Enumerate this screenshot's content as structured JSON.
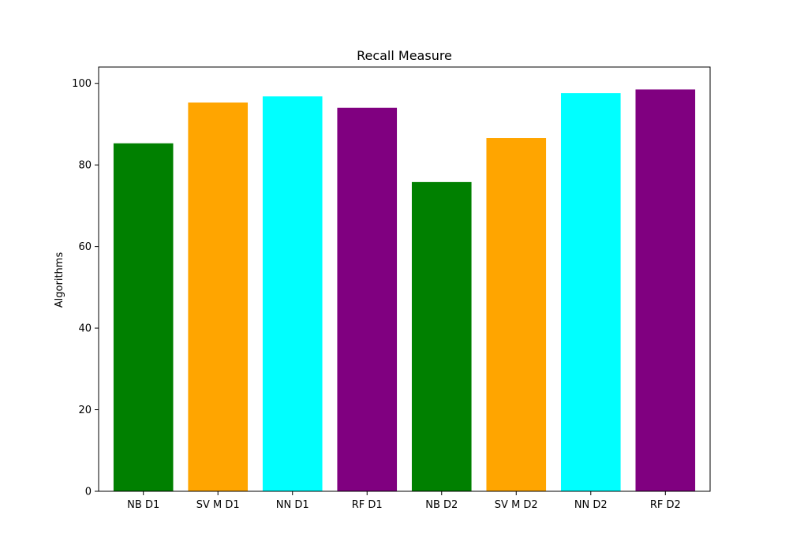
{
  "chart_data": {
    "type": "bar",
    "title": "Recall Measure",
    "xlabel": "",
    "ylabel": "Algorithms",
    "categories": [
      "NB D1",
      "SV M D1",
      "NN D1",
      "RF D1",
      "NB D2",
      "SV M D2",
      "NN D2",
      "RF D2"
    ],
    "values": [
      85.3,
      95.3,
      96.8,
      94.0,
      75.8,
      86.6,
      97.6,
      98.5
    ],
    "colors": [
      "#008000",
      "#ffa500",
      "#00ffff",
      "#800080",
      "#008000",
      "#ffa500",
      "#00ffff",
      "#800080"
    ],
    "ylim": [
      0,
      104
    ],
    "yticks": [
      0,
      20,
      40,
      60,
      80,
      100
    ],
    "grid": false,
    "legend": false
  }
}
